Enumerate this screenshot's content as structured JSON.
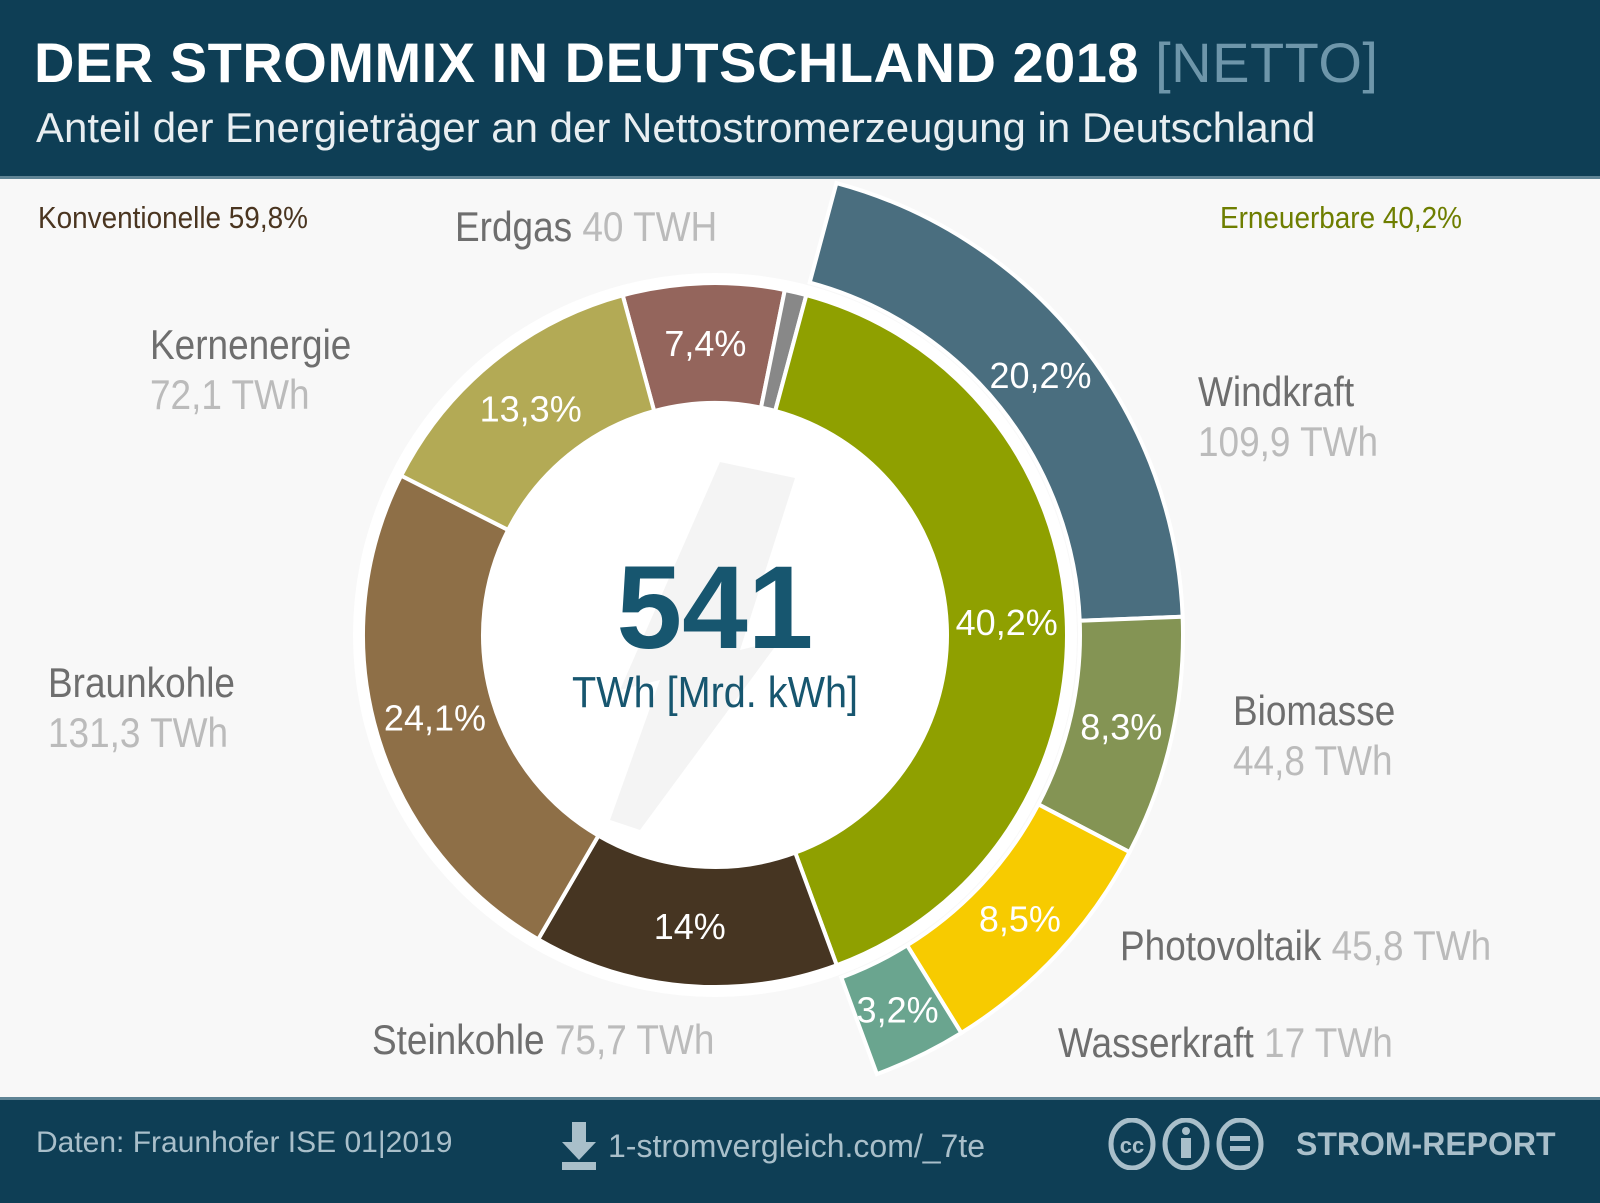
{
  "header": {
    "title": "DER STROMMIX IN DEUTSCHLAND 2018",
    "title_tag": "[NETTO]",
    "subtitle": "Anteil der Energieträger an der Nettostromerzeugung in Deutschland"
  },
  "groups": {
    "conventional": "Konventionelle 59,8%",
    "renewable": "Erneuerbare 40,2%"
  },
  "labels": {
    "erdgas": {
      "name": "Erdgas",
      "value": "40 TWH"
    },
    "kernenergie": {
      "name": "Kernenergie",
      "value": "72,1 TWh"
    },
    "braunkohle": {
      "name": "Braunkohle",
      "value": "131,3 TWh"
    },
    "steinkohle": {
      "name": "Steinkohle",
      "value": "75,7 TWh"
    },
    "windkraft": {
      "name": "Windkraft",
      "value": "109,9 TWh"
    },
    "biomasse": {
      "name": "Biomasse",
      "value": "44,8 TWh"
    },
    "photovoltaik": {
      "name": "Photovoltaik",
      "value": "45,8 TWh"
    },
    "wasserkraft": {
      "name": "Wasserkraft",
      "value": "17 TWh"
    }
  },
  "center": {
    "value": "541",
    "unit": "TWh [Mrd. kWh]"
  },
  "footer": {
    "source": "Daten: Fraunhofer ISE 01|2019",
    "link": "1-stromvergleich.com/_7te",
    "brand": "STROM-REPORT",
    "icons": [
      "download-icon",
      "cc-icon",
      "by-icon",
      "nd-icon"
    ]
  },
  "chart_data": {
    "type": "pie",
    "total": 541,
    "unit": "TWh",
    "inner_ring": [
      {
        "category": "Erdgas",
        "percent": 7.4,
        "label": "7,4%",
        "color": "#94655c"
      },
      {
        "category": "",
        "percent": 1.0,
        "label": "",
        "color": "#888888"
      },
      {
        "category": "Erneuerbare",
        "percent": 40.2,
        "label": "40,2%",
        "color": "#8fa000"
      },
      {
        "category": "Steinkohle",
        "percent": 14.0,
        "label": "14%",
        "color": "#463522"
      },
      {
        "category": "Braunkohle",
        "percent": 24.1,
        "label": "24,1%",
        "color": "#8e6f47"
      },
      {
        "category": "Kernenergie",
        "percent": 13.3,
        "label": "13,3%",
        "color": "#b3aa55"
      }
    ],
    "outer_ring": [
      {
        "category": "Windkraft",
        "percent": 20.2,
        "label": "20,2%",
        "color": "#4a6e7f"
      },
      {
        "category": "Biomasse",
        "percent": 8.3,
        "label": "8,3%",
        "color": "#849454"
      },
      {
        "category": "Photovoltaik",
        "percent": 8.5,
        "label": "8,5%",
        "color": "#f7cb00"
      },
      {
        "category": "Wasserkraft",
        "percent": 3.2,
        "label": "3,2%",
        "color": "#6aa58f"
      }
    ]
  }
}
